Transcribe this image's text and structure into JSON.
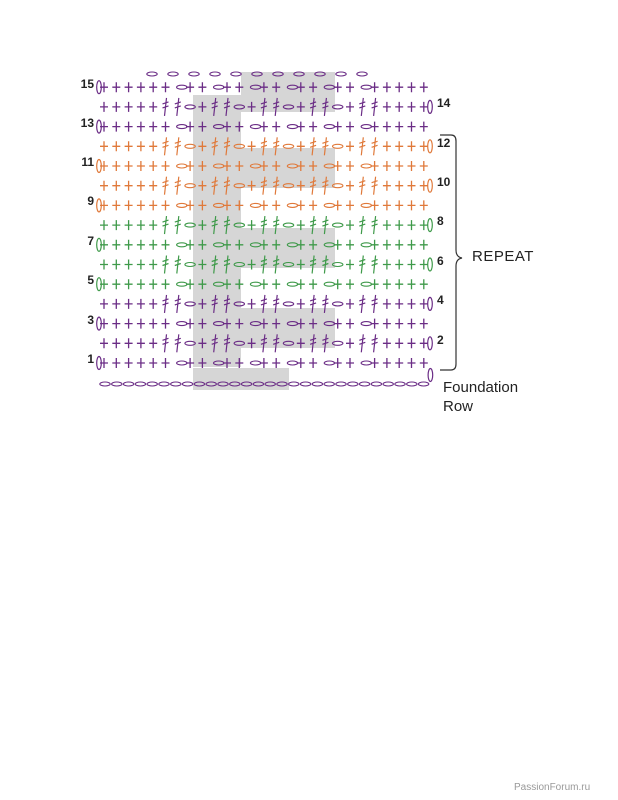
{
  "diagram": {
    "left_row_numbers": [
      "15",
      "13",
      "11",
      "9",
      "7",
      "5",
      "3",
      "1"
    ],
    "right_row_numbers": [
      "14",
      "12",
      "10",
      "8",
      "6",
      "4",
      "2"
    ],
    "repeat_label": "REPEAT",
    "foundation_label_line1": "Foundation",
    "foundation_label_line2": "Row",
    "colors": {
      "purple": "#6b2d86",
      "orange": "#e0793a",
      "green": "#3f9a4a",
      "shade": "#d6d6d6",
      "text": "#222222"
    },
    "row_colors": [
      "purple",
      "purple",
      "purple",
      "purple",
      "green",
      "green",
      "green",
      "green",
      "orange",
      "orange",
      "orange",
      "orange",
      "purple",
      "purple",
      "purple"
    ]
  },
  "watermark": "PassionForum.ru"
}
